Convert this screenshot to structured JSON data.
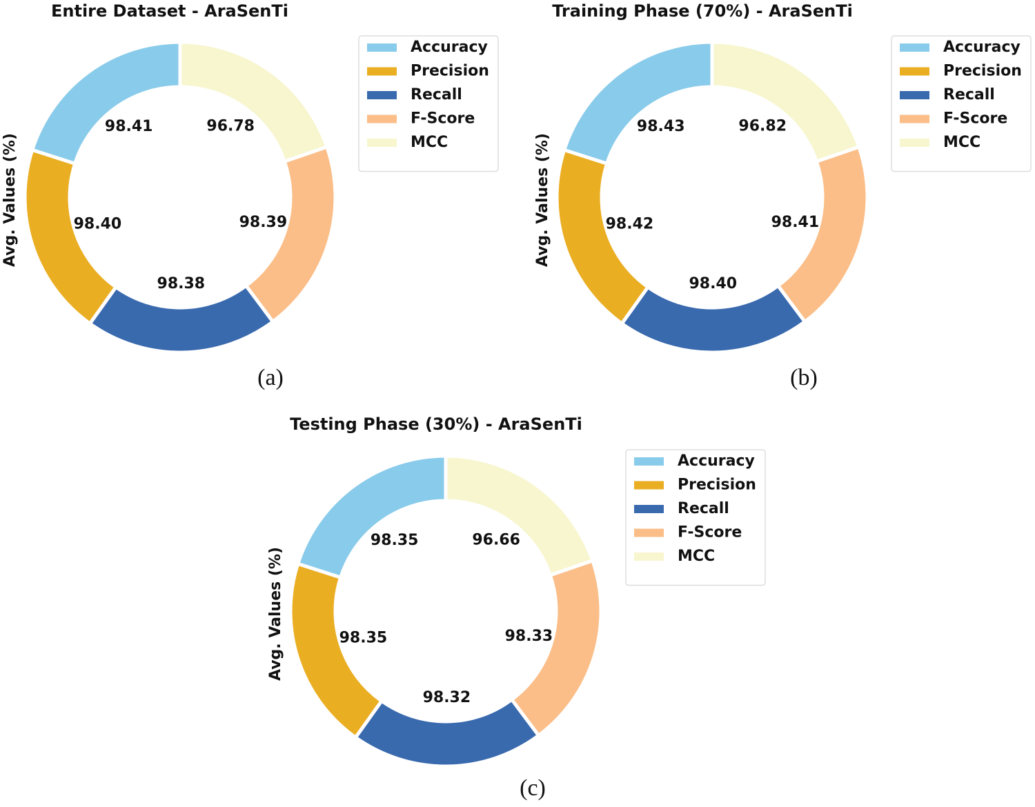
{
  "chart_data": [
    {
      "type": "pie",
      "title": "Entire Dataset - AraSenTi",
      "y_label": "Avg. Values (%)",
      "caption": "(a)",
      "categories": [
        "Accuracy",
        "Precision",
        "Recall",
        "F-Score",
        "MCC"
      ],
      "values": [
        98.41,
        98.4,
        98.38,
        98.39,
        96.78
      ],
      "value_labels": [
        "98.41",
        "98.40",
        "98.38",
        "98.39",
        "96.78"
      ],
      "colors": [
        "#89cbea",
        "#eaae23",
        "#3a6aae",
        "#fbbe88",
        "#f7f6cf"
      ],
      "donut": true,
      "legend": "right"
    },
    {
      "type": "pie",
      "title": "Training Phase (70%) - AraSenTi",
      "y_label": "Avg. Values (%)",
      "caption": "(b)",
      "categories": [
        "Accuracy",
        "Precision",
        "Recall",
        "F-Score",
        "MCC"
      ],
      "values": [
        98.43,
        98.42,
        98.4,
        98.41,
        96.82
      ],
      "value_labels": [
        "98.43",
        "98.42",
        "98.40",
        "98.41",
        "96.82"
      ],
      "colors": [
        "#89cbea",
        "#eaae23",
        "#3a6aae",
        "#fbbe88",
        "#f7f6cf"
      ],
      "donut": true,
      "legend": "right"
    },
    {
      "type": "pie",
      "title": "Testing Phase (30%) - AraSenTi",
      "y_label": "Avg. Values (%)",
      "caption": "(c)",
      "categories": [
        "Accuracy",
        "Precision",
        "Recall",
        "F-Score",
        "MCC"
      ],
      "values": [
        98.35,
        98.35,
        98.32,
        98.33,
        96.66
      ],
      "value_labels": [
        "98.35",
        "98.35",
        "98.32",
        "98.33",
        "96.66"
      ],
      "colors": [
        "#89cbea",
        "#eaae23",
        "#3a6aae",
        "#fbbe88",
        "#f7f6cf"
      ],
      "donut": true,
      "legend": "right"
    }
  ]
}
